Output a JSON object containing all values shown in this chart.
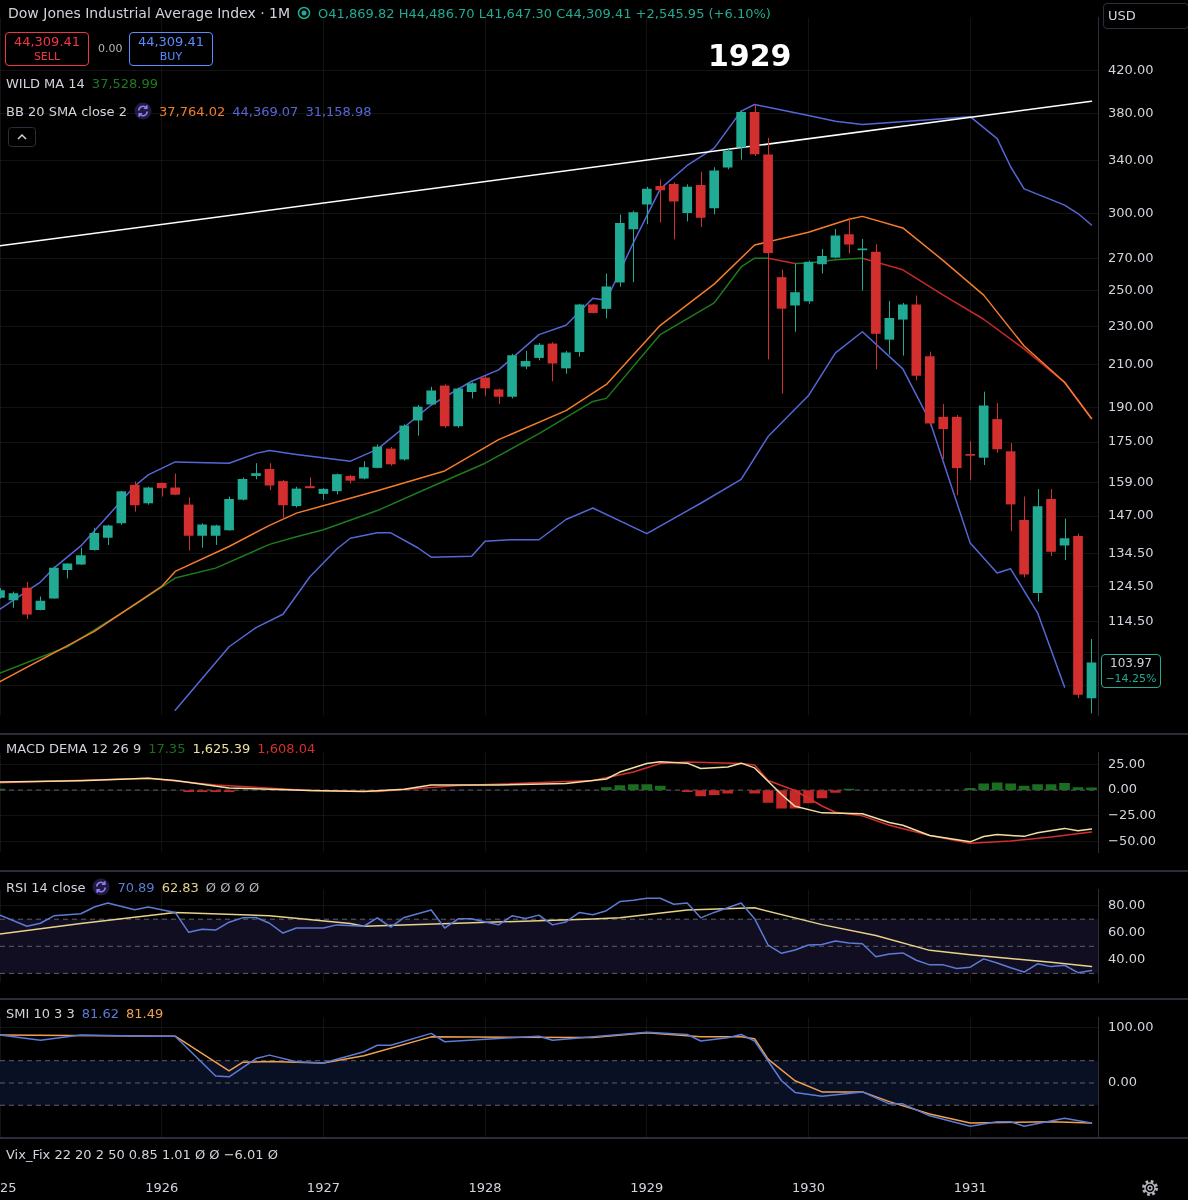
{
  "chart_data": [
    {
      "type": "candlestick",
      "title": "Dow Jones Industrial Average Index · 1M",
      "subtitle": "O41,869.82 H44,486.70 L41,647.30 C44,309.41 +2,545.95 (+6.10%)",
      "annotations": [
        "44,309.41",
        "SELL",
        "0.00",
        "44,309.41",
        "BUY",
        "WILD MA 14",
        "37,528.99",
        "BB 20 SMA close 2",
        "37,764.02",
        "44,369.07",
        "31,158.98",
        "USD",
        "103.97",
        "−14.25%",
        "1929"
      ],
      "x": [
        "1925-01",
        "1925-02",
        "1925-03",
        "1925-04",
        "1925-05",
        "1925-06",
        "1925-07",
        "1925-08",
        "1925-09",
        "1925-10",
        "1925-11",
        "1925-12",
        "1926-01",
        "1926-02",
        "1926-03",
        "1926-04",
        "1926-05",
        "1926-06",
        "1926-07",
        "1926-08",
        "1926-09",
        "1926-10",
        "1926-11",
        "1926-12",
        "1927-01",
        "1927-02",
        "1927-03",
        "1927-04",
        "1927-05",
        "1927-06",
        "1927-07",
        "1927-08",
        "1927-09",
        "1927-10",
        "1927-11",
        "1927-12",
        "1928-01",
        "1928-02",
        "1928-03",
        "1928-04",
        "1928-05",
        "1928-06",
        "1928-07",
        "1928-08",
        "1928-09",
        "1928-10",
        "1928-11",
        "1928-12",
        "1929-01",
        "1929-02",
        "1929-03",
        "1929-04",
        "1929-05",
        "1929-06",
        "1929-07",
        "1929-08",
        "1929-09",
        "1929-10",
        "1929-11",
        "1929-12",
        "1930-01",
        "1930-02",
        "1930-03",
        "1930-04",
        "1930-05",
        "1930-06",
        "1930-07",
        "1930-08",
        "1930-09",
        "1930-10",
        "1930-11",
        "1930-12",
        "1931-01",
        "1931-02",
        "1931-03",
        "1931-04",
        "1931-05",
        "1931-06",
        "1931-07",
        "1931-08",
        "1931-09",
        "1931-10"
      ],
      "ohlc": [
        [
          121.3,
          124,
          121,
          123.3
        ],
        [
          120.6,
          123,
          118.4,
          122.4
        ],
        [
          124,
          125.8,
          115.3,
          116.6
        ],
        [
          117.9,
          121.6,
          117.7,
          120.3
        ],
        [
          121.1,
          130.5,
          121,
          130
        ],
        [
          129.5,
          131.5,
          126.9,
          131.3
        ],
        [
          131.2,
          136.4,
          131,
          133.9
        ],
        [
          135.8,
          143,
          135.5,
          141.1
        ],
        [
          139.8,
          144,
          137.3,
          143.6
        ],
        [
          144.6,
          156,
          144,
          155.7
        ],
        [
          158.1,
          159.5,
          148.5,
          150.9
        ],
        [
          151.6,
          157.5,
          151,
          157.1
        ],
        [
          158.8,
          159,
          153.9,
          157.1
        ],
        [
          157.1,
          162.5,
          154.5,
          154.7
        ],
        [
          150.9,
          153.6,
          135.5,
          140.4
        ],
        [
          140.4,
          144.5,
          136.4,
          144
        ],
        [
          140.4,
          144,
          137.3,
          143.6
        ],
        [
          142.3,
          153.9,
          142,
          152.9
        ],
        [
          152.9,
          161,
          152.5,
          160.3
        ],
        [
          161.7,
          166.5,
          160.3,
          162.5
        ],
        [
          164.1,
          166.5,
          156.3,
          158.1
        ],
        [
          159.5,
          160,
          145.9,
          150.9
        ],
        [
          150.6,
          157.5,
          150,
          156.7
        ],
        [
          157.6,
          161,
          157,
          157.1
        ],
        [
          155,
          157,
          152.7,
          156.6
        ],
        [
          156,
          162.5,
          154.7,
          162.1
        ],
        [
          161.4,
          162,
          158.8,
          159.9
        ],
        [
          160.7,
          167.3,
          160.3,
          164.8
        ],
        [
          164.8,
          174,
          164.5,
          173
        ],
        [
          172.2,
          173,
          165.5,
          166.2
        ],
        [
          168.1,
          182.5,
          167.5,
          181.8
        ],
        [
          184.3,
          191,
          177.7,
          190.1
        ],
        [
          191.4,
          199.4,
          191,
          197.5
        ],
        [
          199.8,
          200.5,
          181,
          181.8
        ],
        [
          181.8,
          199,
          181,
          198.4
        ],
        [
          197.1,
          201.5,
          194,
          200.9
        ],
        [
          203.6,
          204.5,
          195.2,
          198.8
        ],
        [
          198,
          198.5,
          191.4,
          194.9
        ],
        [
          194.9,
          215.5,
          194,
          214.6
        ],
        [
          209.3,
          217,
          207.8,
          211.7
        ],
        [
          213.6,
          221,
          212.2,
          220
        ],
        [
          220.6,
          221.5,
          202,
          210.8
        ],
        [
          208.4,
          217,
          205.6,
          216
        ],
        [
          216.6,
          242.5,
          214.1,
          241.9
        ],
        [
          241.9,
          242.5,
          237,
          237.5
        ],
        [
          239.8,
          260.4,
          234.3,
          252.4
        ],
        [
          255.2,
          299.3,
          252.4,
          293.2
        ],
        [
          289.4,
          302,
          255.2,
          300.6
        ],
        [
          306.7,
          319.5,
          292.6,
          317.9
        ],
        [
          319.9,
          325.1,
          293.9,
          317.2
        ],
        [
          321.4,
          323,
          282.3,
          308.8
        ],
        [
          300.6,
          321.4,
          294.5,
          319.3
        ],
        [
          320.6,
          331.1,
          290.6,
          297.2
        ],
        [
          304,
          334.6,
          299.5,
          331.8
        ],
        [
          334.6,
          350,
          333,
          347.7
        ],
        [
          350.9,
          382.4,
          340.7,
          380.9
        ],
        [
          380.9,
          388.3,
          343.6,
          345.2
        ],
        [
          344.6,
          358.7,
          212.7,
          273.5
        ],
        [
          258,
          262.8,
          196.2,
          239.9
        ],
        [
          241.7,
          266.4,
          227,
          249
        ],
        [
          244.1,
          268.5,
          242.5,
          267.5
        ],
        [
          266.4,
          276,
          260.4,
          271.2
        ],
        [
          270.6,
          289.3,
          270,
          284.6
        ],
        [
          285.5,
          297.2,
          273,
          279.1
        ],
        [
          275.4,
          282.5,
          250.1,
          276
        ],
        [
          274,
          279,
          207.8,
          226.1
        ],
        [
          223,
          244.1,
          215.1,
          234.3
        ],
        [
          233.8,
          243,
          214.6,
          241.9
        ],
        [
          241.9,
          247.3,
          202.4,
          204.8
        ],
        [
          214.1,
          216.6,
          181.7,
          183
        ],
        [
          185.6,
          191.4,
          168.1,
          180.6
        ],
        [
          185.6,
          186.5,
          154.4,
          164.7
        ],
        [
          170,
          175.4,
          159.9,
          169.6
        ],
        [
          168.8,
          197.1,
          165.8,
          190.6
        ],
        [
          184.6,
          191.8,
          170.6,
          172.2
        ],
        [
          171.1,
          174.6,
          141.8,
          151.2
        ],
        [
          145.5,
          153.9,
          127.2,
          128.2
        ],
        [
          122.7,
          156.7,
          120.1,
          150.3
        ],
        [
          152.9,
          156.7,
          133.8,
          135.2
        ],
        [
          137.2,
          146.1,
          132.5,
          139.4
        ],
        [
          140.1,
          141,
          95.7,
          96.5
        ],
        [
          95.7,
          110,
          92.3,
          103.97
        ]
      ],
      "colors": [
        "#22ab94",
        "#22ab94",
        "#d32f2f",
        "#22ab94",
        "#22ab94",
        "#22ab94",
        "#22ab94",
        "#22ab94",
        "#22ab94",
        "#22ab94",
        "#d32f2f",
        "#22ab94",
        "#d32f2f",
        "#d32f2f",
        "#d32f2f",
        "#22ab94",
        "#22ab94",
        "#22ab94",
        "#22ab94",
        "#22ab94",
        "#d32f2f",
        "#d32f2f",
        "#22ab94",
        "#d32f2f",
        "#22ab94",
        "#22ab94",
        "#d32f2f",
        "#22ab94",
        "#22ab94",
        "#d32f2f",
        "#22ab94",
        "#22ab94",
        "#22ab94",
        "#d32f2f",
        "#22ab94",
        "#22ab94",
        "#d32f2f",
        "#d32f2f",
        "#22ab94",
        "#22ab94",
        "#22ab94",
        "#d32f2f",
        "#22ab94",
        "#22ab94",
        "#d32f2f",
        "#22ab94",
        "#22ab94",
        "#22ab94",
        "#22ab94",
        "#d32f2f",
        "#d32f2f",
        "#22ab94",
        "#d32f2f",
        "#22ab94",
        "#22ab94",
        "#22ab94",
        "#d32f2f",
        "#d32f2f",
        "#d32f2f",
        "#22ab94",
        "#22ab94",
        "#22ab94",
        "#22ab94",
        "#d32f2f",
        "#22ab94",
        "#d32f2f",
        "#22ab94",
        "#22ab94",
        "#d32f2f",
        "#d32f2f",
        "#d32f2f",
        "#d32f2f",
        "#d32f2f",
        "#22ab94",
        "#d32f2f",
        "#d32f2f",
        "#d32f2f",
        "#22ab94",
        "#d32f2f",
        "#22ab94",
        "#d32f2f",
        "#22ab94"
      ],
      "series": [
        {
          "type": "line",
          "color": "#ffffff",
          "x": [
            "1925-01",
            "1931-10"
          ],
          "values": [
            278,
            391
          ]
        },
        {
          "type": "line",
          "color": "#5567d6",
          "x": [
            "1925-01",
            "1925-04",
            "1925-05",
            "1925-07",
            "1925-09",
            "1925-11",
            "1925-12",
            "1926-02",
            "1926-06",
            "1926-08",
            "1926-09",
            "1926-11",
            "1927-03",
            "1927-05",
            "1927-09",
            "1927-12",
            "1928-02",
            "1928-05",
            "1928-07",
            "1928-09",
            "1928-10",
            "1928-12",
            "1929-02",
            "1929-04",
            "1929-06",
            "1929-08",
            "1929-09",
            "1930-01",
            "1930-03",
            "1930-05",
            "1930-12",
            "1931-01",
            "1931-03",
            "1931-04",
            "1931-05",
            "1931-07",
            "1931-08",
            "1931-09",
            "1931-10"
          ],
          "values": [
            118,
            125.8,
            130,
            137,
            147,
            157.8,
            162,
            167,
            166.5,
            170.4,
            171.6,
            170,
            167.3,
            172,
            191,
            202,
            207.5,
            225.5,
            230.5,
            245.7,
            244.5,
            280,
            318,
            336,
            350,
            382,
            388,
            378,
            373,
            370,
            376,
            377,
            358,
            335,
            318,
            310,
            306,
            300,
            292
          ]
        },
        {
          "type": "line",
          "color": "#f57c2a",
          "x": [
            "1925-01",
            "1925-08",
            "1926-01",
            "1926-02",
            "1926-06",
            "1926-09",
            "1926-11",
            "1927-05",
            "1927-10",
            "1928-02",
            "1928-07",
            "1928-10",
            "1929-02",
            "1929-06",
            "1929-09",
            "1930-01",
            "1930-04",
            "1930-05",
            "1930-08",
            "1930-11",
            "1931-02",
            "1931-05",
            "1931-08",
            "1931-10"
          ],
          "values": [
            99.5,
            112,
            124.5,
            129,
            136.8,
            143.8,
            148,
            156,
            163.5,
            176,
            188.5,
            200.5,
            230.5,
            254,
            278.5,
            287,
            296,
            298,
            290,
            268.5,
            247.5,
            219.5,
            201.5,
            185
          ]
        },
        {
          "type": "line",
          "color": "#5567d6",
          "x": [
            "1926-02",
            "1926-06",
            "1926-08",
            "1926-10",
            "1926-12",
            "1927-02",
            "1927-03",
            "1927-05",
            "1927-06",
            "1927-08",
            "1927-09",
            "1927-12",
            "1928-01",
            "1928-03",
            "1928-05",
            "1928-07",
            "1928-09",
            "1929-01",
            "1929-05",
            "1929-08",
            "1929-10",
            "1930-01",
            "1930-03",
            "1930-05",
            "1930-08",
            "1930-10",
            "1931-01",
            "1931-03",
            "1931-04",
            "1931-06",
            "1931-08"
          ],
          "values": [
            93,
            108,
            113,
            116.6,
            127.4,
            136,
            139.5,
            141.3,
            141.3,
            136.4,
            133.4,
            133.7,
            138.5,
            139,
            139,
            145.8,
            149.8,
            141,
            151.5,
            160.3,
            177.3,
            195.3,
            216,
            227,
            208,
            184,
            137.9,
            128.5,
            129.8,
            117,
            98.2
          ]
        },
        {
          "type": "line",
          "color": "#1e7b1e",
          "x": [
            "1925-01",
            "1925-06",
            "1925-11",
            "1926-02",
            "1926-05",
            "1926-09",
            "1926-11",
            "1927-01",
            "1927-05",
            "1927-09",
            "1928-01",
            "1928-05",
            "1928-09",
            "1928-10",
            "1929-02",
            "1929-06",
            "1929-08",
            "1929-09",
            "1929-10"
          ],
          "values": [
            101.5,
            108,
            119.2,
            127,
            130,
            137.5,
            140,
            142.3,
            148.9,
            157.5,
            166.5,
            178.5,
            192.6,
            194,
            225.5,
            243,
            264.5,
            270,
            270
          ]
        },
        {
          "type": "line",
          "color": "#c62828",
          "x": [
            "1929-10",
            "1929-12"
          ],
          "values": [
            270,
            266.7
          ]
        },
        {
          "type": "line",
          "color": "#1e7b1e",
          "x": [
            "1929-12",
            "1930-01",
            "1930-03",
            "1930-05"
          ],
          "values": [
            266.7,
            267,
            269,
            270
          ]
        },
        {
          "type": "line",
          "color": "#c62828",
          "x": [
            "1930-05",
            "1930-08",
            "1930-11",
            "1931-02",
            "1931-05",
            "1931-08",
            "1931-10"
          ],
          "values": [
            270,
            262.7,
            247.5,
            233.8,
            218,
            201.5,
            185
          ]
        }
      ],
      "xlim": [
        "1925-01",
        "1931-10-16"
      ],
      "xticks": [
        {
          "value": "1925-01",
          "label": null
        },
        {
          "value": "1926-01",
          "label": null
        },
        {
          "value": "1927-01",
          "label": null
        },
        {
          "value": "1928-01",
          "label": null
        },
        {
          "value": "1929-01",
          "label": null
        },
        {
          "value": "1930-01",
          "label": null
        },
        {
          "value": "1931-01",
          "label": null
        }
      ],
      "ylim": [
        91.9,
        476
      ],
      "log": true,
      "yticks": [
        {
          "value": 420,
          "label": "420.00"
        },
        {
          "value": 380,
          "label": "380.00"
        },
        {
          "value": 340,
          "label": "340.00"
        },
        {
          "value": 300,
          "label": "300.00"
        },
        {
          "value": 270,
          "label": "270.00"
        },
        {
          "value": 250,
          "label": "250.00"
        },
        {
          "value": 230,
          "label": "230.00"
        },
        {
          "value": 210,
          "label": "210.00"
        },
        {
          "value": 190,
          "label": "190.00"
        },
        {
          "value": 175,
          "label": "175.00"
        },
        {
          "value": 159,
          "label": "159.00"
        },
        {
          "value": 147,
          "label": "147.00"
        },
        {
          "value": 134.5,
          "label": "134.50"
        },
        {
          "value": 124.5,
          "label": "124.50"
        },
        {
          "value": 114.5,
          "label": "114.50"
        },
        {
          "value": 106.5,
          "label": null
        },
        {
          "value": 98.5,
          "label": null
        }
      ],
      "grid": true,
      "tick_labels": "y"
    },
    {
      "type": "line",
      "title": "MACD DEMA 12 26 9",
      "annotations": [
        "17.35",
        "1,625.39",
        "1,608.04"
      ],
      "series": [
        {
          "color": "#f0e0a0",
          "x": [
            "1925-01",
            "1925-07",
            "1925-12",
            "1926-02",
            "1926-06",
            "1926-12",
            "1927-04",
            "1927-07",
            "1927-09",
            "1928-02",
            "1928-07",
            "1928-09",
            "1928-10",
            "1928-11",
            "1929-01",
            "1929-02",
            "1929-04",
            "1929-05",
            "1929-07",
            "1929-08",
            "1929-09",
            "1929-11",
            "1929-12",
            "1930-02",
            "1930-05",
            "1930-07",
            "1930-08",
            "1930-10",
            "1931-01",
            "1931-02",
            "1931-03",
            "1931-05",
            "1931-06",
            "1931-08",
            "1931-09",
            "1931-10"
          ],
          "values": [
            7.7,
            9,
            11.4,
            9.3,
            2.1,
            -0.5,
            -1.4,
            0.9,
            5,
            5,
            6.4,
            9.3,
            10.7,
            17.4,
            25.6,
            27.4,
            26,
            20.9,
            22.3,
            26,
            21.4,
            -4.3,
            -15.7,
            -22,
            -22.9,
            -31.4,
            -34,
            -43.9,
            -50,
            -44.8,
            -43,
            -44.7,
            -41.2,
            -37,
            -39.3,
            -37.6
          ]
        },
        {
          "color": "#d32f2f",
          "x": [
            "1925-01",
            "1925-12",
            "1926-05",
            "1926-12",
            "1927-05",
            "1927-11",
            "1928-09",
            "1928-12",
            "1929-02",
            "1929-04",
            "1929-08",
            "1929-09",
            "1929-10",
            "1929-12",
            "1930-02",
            "1930-03",
            "1930-05",
            "1930-07",
            "1930-10",
            "1931-01",
            "1931-04",
            "1931-07",
            "1931-10"
          ],
          "values": [
            7,
            11.4,
            5,
            -0.5,
            -1.4,
            4.3,
            9.3,
            17.4,
            25.6,
            27,
            25.6,
            24.3,
            9.3,
            -0.4,
            -15.4,
            -21.4,
            -24.9,
            -33.9,
            -43.9,
            -51.3,
            -49.3,
            -45.3,
            -40.4
          ]
        },
        {
          "type": "bar",
          "color": "#1b6e20",
          "x": [
            "1925-01",
            "1928-10",
            "1928-11",
            "1928-12",
            "1929-01",
            "1929-02",
            "1930-04",
            "1931-01",
            "1931-02",
            "1931-03",
            "1931-04",
            "1931-05",
            "1931-06",
            "1931-07",
            "1931-08",
            "1931-09",
            "1931-10"
          ],
          "values": [
            1,
            2.5,
            4.3,
            5.2,
            5.2,
            3.8,
            1,
            1.6,
            6,
            7.1,
            6,
            3.8,
            5.2,
            5.2,
            6.5,
            2.5,
            2.2
          ]
        },
        {
          "type": "bar",
          "color": "#c62828",
          "x": [
            "1926-03",
            "1926-04",
            "1926-05",
            "1926-06",
            "1929-04",
            "1929-05",
            "1929-06",
            "1929-07",
            "1929-09",
            "1929-10",
            "1929-11",
            "1929-12",
            "1930-01",
            "1930-02",
            "1930-03"
          ],
          "values": [
            -1.5,
            -1.5,
            -1.5,
            -1.5,
            -1.6,
            -5.7,
            -4.4,
            -3,
            -3,
            -12,
            -17.4,
            -17.4,
            -12.5,
            -7.6,
            -2.2
          ]
        }
      ],
      "ref_lines": [
        {
          "axis": "y",
          "value": 0,
          "line_style": "dashed",
          "color": "#5d606b"
        }
      ],
      "xlim": [
        "1925-01",
        "1931-10-16"
      ],
      "xticks": [
        {
          "value": "1925-01",
          "label": null
        },
        {
          "value": "1926-01",
          "label": null
        },
        {
          "value": "1927-01",
          "label": null
        },
        {
          "value": "1928-01",
          "label": null
        },
        {
          "value": "1929-01",
          "label": null
        },
        {
          "value": "1930-01",
          "label": null
        },
        {
          "value": "1931-01",
          "label": null
        }
      ],
      "ylim": [
        -60,
        36
      ],
      "yticks": [
        {
          "value": 25,
          "label": "25.00"
        },
        {
          "value": 0,
          "label": "0.00"
        },
        {
          "value": -25,
          "label": "−25.00"
        },
        {
          "value": -50,
          "label": "−50.00"
        }
      ],
      "grid": true,
      "tick_labels": "y"
    },
    {
      "type": "line",
      "title": "RSI 14 close",
      "annotations": [
        "70.89",
        "62.83",
        "Ø Ø Ø Ø"
      ],
      "series": [
        {
          "color": "#5b7bd5",
          "x": [
            "1925-01",
            "1925-03",
            "1925-04",
            "1925-05",
            "1925-07",
            "1925-08",
            "1925-09",
            "1925-11",
            "1925-12",
            "1926-02",
            "1926-03",
            "1926-04",
            "1926-05",
            "1926-06",
            "1926-07",
            "1926-08",
            "1926-09",
            "1926-10",
            "1926-11",
            "1927-01",
            "1927-02",
            "1927-04",
            "1927-05",
            "1927-06",
            "1927-07",
            "1927-09",
            "1927-10",
            "1927-11",
            "1927-12",
            "1928-01",
            "1928-02",
            "1928-03",
            "1928-04",
            "1928-05",
            "1928-06",
            "1928-07",
            "1928-08",
            "1928-09",
            "1928-10",
            "1928-11",
            "1928-12",
            "1929-01",
            "1929-02",
            "1929-03",
            "1929-04",
            "1929-05",
            "1929-06",
            "1929-07",
            "1929-08",
            "1929-09",
            "1929-10",
            "1929-11",
            "1929-12",
            "1930-01",
            "1930-02",
            "1930-03",
            "1930-04",
            "1930-05",
            "1930-06",
            "1930-07",
            "1930-08",
            "1930-09",
            "1930-10",
            "1930-11",
            "1930-12",
            "1931-01",
            "1931-02",
            "1931-03",
            "1931-04",
            "1931-05",
            "1931-06",
            "1931-07",
            "1931-08",
            "1931-09",
            "1931-10"
          ],
          "values": [
            73,
            64.8,
            67,
            72.5,
            74,
            79,
            82,
            77,
            79,
            75,
            60.3,
            62.6,
            62,
            67.8,
            71,
            71.3,
            67,
            59.8,
            63.5,
            63.5,
            65.8,
            64.8,
            71,
            64.2,
            71.3,
            76.8,
            63.5,
            70.3,
            70.3,
            68,
            65.8,
            72.5,
            70.5,
            73,
            65.8,
            68,
            75,
            73.3,
            76.3,
            83,
            84,
            85.5,
            85.5,
            81,
            82,
            71,
            75,
            78.4,
            82,
            70.4,
            50.9,
            44.8,
            47.3,
            50.9,
            51.3,
            53.9,
            52.5,
            51.9,
            42.3,
            44.3,
            45.1,
            39.7,
            36.3,
            36.3,
            33.6,
            34.6,
            40.7,
            37.7,
            34.2,
            31,
            37.1,
            35,
            36,
            30.5,
            32.2
          ]
        },
        {
          "color": "#e6d28a",
          "x": [
            "1925-01",
            "1925-07",
            "1926-02",
            "1926-09",
            "1927-03",
            "1927-04",
            "1927-11",
            "1928-09",
            "1928-11",
            "1929-04",
            "1929-09",
            "1930-02",
            "1930-06",
            "1930-10",
            "1931-01",
            "1931-07",
            "1931-10"
          ],
          "values": [
            59.1,
            66.8,
            75,
            72.5,
            66.8,
            64.8,
            67,
            70.2,
            71,
            76.8,
            78.4,
            66,
            58,
            47,
            43.7,
            38.3,
            35
          ]
        }
      ],
      "bands": [
        {
          "axis": "y",
          "from": 30,
          "to": 70,
          "color": "#120e22"
        }
      ],
      "ref_lines": [
        {
          "axis": "y",
          "value": 70,
          "line_style": "dashed",
          "color": "#5d606b"
        },
        {
          "axis": "y",
          "value": 50,
          "line_style": "dashed",
          "color": "#5d606b"
        },
        {
          "axis": "y",
          "value": 30,
          "line_style": "dashed",
          "color": "#5d606b"
        }
      ],
      "xlim": [
        "1925-01",
        "1931-10-16"
      ],
      "xticks": [
        {
          "value": "1925-01",
          "label": null
        },
        {
          "value": "1926-01",
          "label": null
        },
        {
          "value": "1927-01",
          "label": null
        },
        {
          "value": "1928-01",
          "label": null
        },
        {
          "value": "1929-01",
          "label": null
        },
        {
          "value": "1930-01",
          "label": null
        },
        {
          "value": "1931-01",
          "label": null
        }
      ],
      "ylim": [
        23.5,
        91.7
      ],
      "yticks": [
        {
          "value": 80,
          "label": "80.00"
        },
        {
          "value": 60,
          "label": "60.00"
        },
        {
          "value": 40,
          "label": "40.00"
        }
      ],
      "grid": true,
      "tick_labels": "y"
    },
    {
      "type": "line",
      "title": "SMI 10 3 3",
      "annotations": [
        "81.62",
        "81.49"
      ],
      "series": [
        {
          "color": "#5b7bd5",
          "x": [
            "1925-01",
            "1925-04",
            "1925-07",
            "1925-12",
            "1926-02",
            "1926-05",
            "1926-06",
            "1926-08",
            "1926-09",
            "1926-11",
            "1927-01",
            "1927-04",
            "1927-05",
            "1927-06",
            "1927-09",
            "1927-10",
            "1928-02",
            "1928-05",
            "1928-06",
            "1928-09",
            "1929-01",
            "1929-04",
            "1929-05",
            "1929-07",
            "1929-08",
            "1929-09",
            "1929-11",
            "1929-12",
            "1930-02",
            "1930-05",
            "1930-07",
            "1930-08",
            "1930-10",
            "1931-01",
            "1931-03",
            "1931-04",
            "1931-05",
            "1931-08",
            "1931-10"
          ],
          "values": [
            86,
            76.6,
            86,
            84,
            84,
            12.5,
            11,
            43.8,
            50,
            38,
            36,
            56,
            67.8,
            67.8,
            89,
            74,
            80,
            84,
            76.6,
            83,
            91,
            87,
            75.3,
            81,
            87,
            75.3,
            4,
            -17,
            -24,
            -16,
            -37.5,
            -37.5,
            -59,
            -77.8,
            -69.5,
            -69.5,
            -77.8,
            -63.5,
            -72
          ]
        },
        {
          "color": "#f0a050",
          "x": [
            "1925-01",
            "1926-02",
            "1926-06",
            "1926-07",
            "1926-09",
            "1927-01",
            "1927-04",
            "1927-09",
            "1928-09",
            "1929-01",
            "1929-05",
            "1929-08",
            "1929-09",
            "1929-10",
            "1929-12",
            "1930-02",
            "1930-05",
            "1930-07",
            "1930-10",
            "1931-01",
            "1931-07",
            "1931-10"
          ],
          "values": [
            86,
            84,
            21.9,
            37,
            38.6,
            36,
            49,
            82.8,
            81.6,
            90,
            83,
            83,
            79.5,
            42.7,
            4,
            -16,
            -16,
            -33.5,
            -55.8,
            -72,
            -69.5,
            -72
          ]
        }
      ],
      "bands": [
        {
          "axis": "y",
          "from": -40,
          "to": 40,
          "color": "#0a1024"
        }
      ],
      "ref_lines": [
        {
          "axis": "y",
          "value": 40,
          "line_style": "dashed",
          "color": "#5d606b"
        },
        {
          "axis": "y",
          "value": 0,
          "line_style": "dashed",
          "color": "#5d606b"
        },
        {
          "axis": "y",
          "value": -40,
          "line_style": "dashed",
          "color": "#5d606b"
        }
      ],
      "xlim": [
        "1925-01",
        "1931-10-16"
      ],
      "xticks": [
        {
          "value": "1925-01",
          "label": "25"
        },
        {
          "value": "1926-01",
          "label": "1926"
        },
        {
          "value": "1927-01",
          "label": "1927"
        },
        {
          "value": "1928-01",
          "label": "1928"
        },
        {
          "value": "1929-01",
          "label": "1929"
        },
        {
          "value": "1930-01",
          "label": "1930"
        },
        {
          "value": "1931-01",
          "label": "1931"
        }
      ],
      "ylim": [
        -97,
        117
      ],
      "yticks": [
        {
          "value": 100,
          "label": "100.00"
        },
        {
          "value": 0,
          "label": "0.00"
        }
      ],
      "grid": true
    },
    {
      "type": "other",
      "title": "Vix_Fix 22 20 2 50 0.85 1.01 Ø Ø −6.01 Ø"
    }
  ]
}
